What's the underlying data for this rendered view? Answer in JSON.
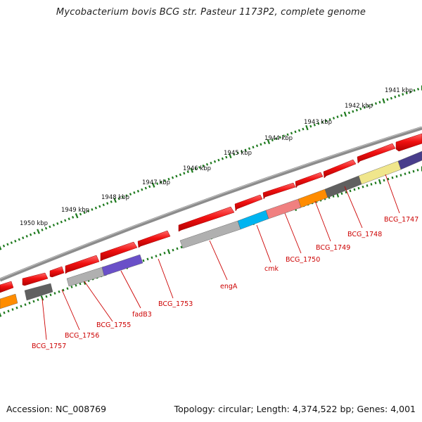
{
  "title": "Mycobacterium bovis BCG str. Pasteur 1173P2, complete genome",
  "accession_text": "Accession: NC_008769",
  "summary_text": "Topology: circular; Length: 4,374,522 bp; Genes: 4,001",
  "colors": {
    "backbone": "#7a7a7a",
    "gene_forward": "#e8141b",
    "tick": "#1e7a1e",
    "label": "#cc0000",
    "leader": "#cc0000"
  },
  "kbp_labels": [
    "1941 kbp",
    "1942 kbp",
    "1943 kbp",
    "1944 kbp",
    "1945 kbp",
    "1946 kbp",
    "1947 kbp",
    "1948 kbp",
    "1949 kbp",
    "1950 kbp"
  ],
  "gene_labels": [
    "BCG_1747",
    "BCG_1748",
    "BCG_1749",
    "BCG_1750",
    "cmk",
    "engA",
    "BCG_1753",
    "fadB3",
    "BCG_1755",
    "BCG_1756",
    "BCG_1757"
  ],
  "reverse_feature_colors": [
    "#ff8c00",
    "#606060",
    "#b0b0b0",
    "#6a50c8",
    "#b0b0b0",
    "#00b4f0",
    "#f08080",
    "#ff8c00",
    "#606060",
    "#f0e68c",
    "#483d8b"
  ]
}
